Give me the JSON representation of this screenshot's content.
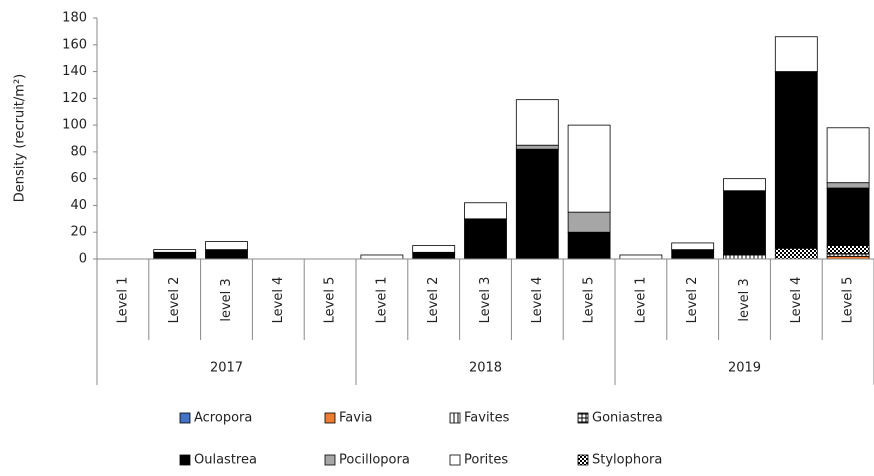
{
  "chart_data": {
    "type": "stacked-bar",
    "y_label": "Density (recruit/m²)",
    "groups": [
      "2017",
      "2018",
      "2019"
    ],
    "categories": [
      "Level 1",
      "Level 2",
      "level 3",
      "Level 4",
      "Level 5",
      "Level 1",
      "Level 2",
      "Level 3",
      "Level 4",
      "Level 5",
      "Level 1",
      "Level 2",
      "level 3",
      "Level 4",
      "Level 5"
    ],
    "series": [
      {
        "name": "Acropora",
        "color": "#4472c4",
        "values": [
          0,
          0,
          0,
          0,
          0,
          0,
          0,
          0,
          0,
          0,
          0,
          0,
          0,
          0,
          0
        ]
      },
      {
        "name": "Favia",
        "color": "#ed7d31",
        "values": [
          0,
          0,
          0,
          0,
          0,
          0,
          0,
          0,
          0,
          0,
          0,
          0,
          0,
          0,
          2
        ]
      },
      {
        "name": "Favites",
        "color": "#ffffff",
        "pattern": "vertical-lines",
        "values": [
          0,
          0,
          0,
          0,
          0,
          0,
          0,
          0,
          0,
          0,
          0,
          0,
          3,
          0,
          0
        ]
      },
      {
        "name": "Goniastrea",
        "color": "#ffffff",
        "pattern": "grid",
        "values": [
          0,
          0,
          0,
          0,
          0,
          0,
          0,
          0,
          0,
          0,
          0,
          0,
          0,
          0,
          2
        ]
      },
      {
        "name": "Stylophora",
        "color": "#ffffff",
        "pattern": "checker",
        "values": [
          0,
          0,
          0,
          0,
          0,
          0,
          0,
          0,
          0,
          0,
          0,
          0,
          0,
          8,
          6
        ]
      },
      {
        "name": "Oulastrea",
        "color": "#000000",
        "values": [
          0,
          5,
          7,
          0,
          0,
          0,
          5,
          30,
          82,
          20,
          0,
          7,
          48,
          132,
          43
        ]
      },
      {
        "name": "Pocillopora",
        "color": "#a6a6a6",
        "values": [
          0,
          0,
          0,
          0,
          0,
          0,
          0,
          0,
          3,
          15,
          0,
          0,
          0,
          0,
          4
        ]
      },
      {
        "name": "Porites",
        "color": "#ffffff",
        "values": [
          0,
          2,
          6,
          0,
          0,
          3,
          5,
          12,
          34,
          65,
          3,
          5,
          9,
          26,
          41
        ]
      }
    ],
    "ylim": [
      0,
      180
    ],
    "yticks": [
      0,
      20,
      40,
      60,
      80,
      100,
      120,
      140,
      160,
      180
    ]
  }
}
